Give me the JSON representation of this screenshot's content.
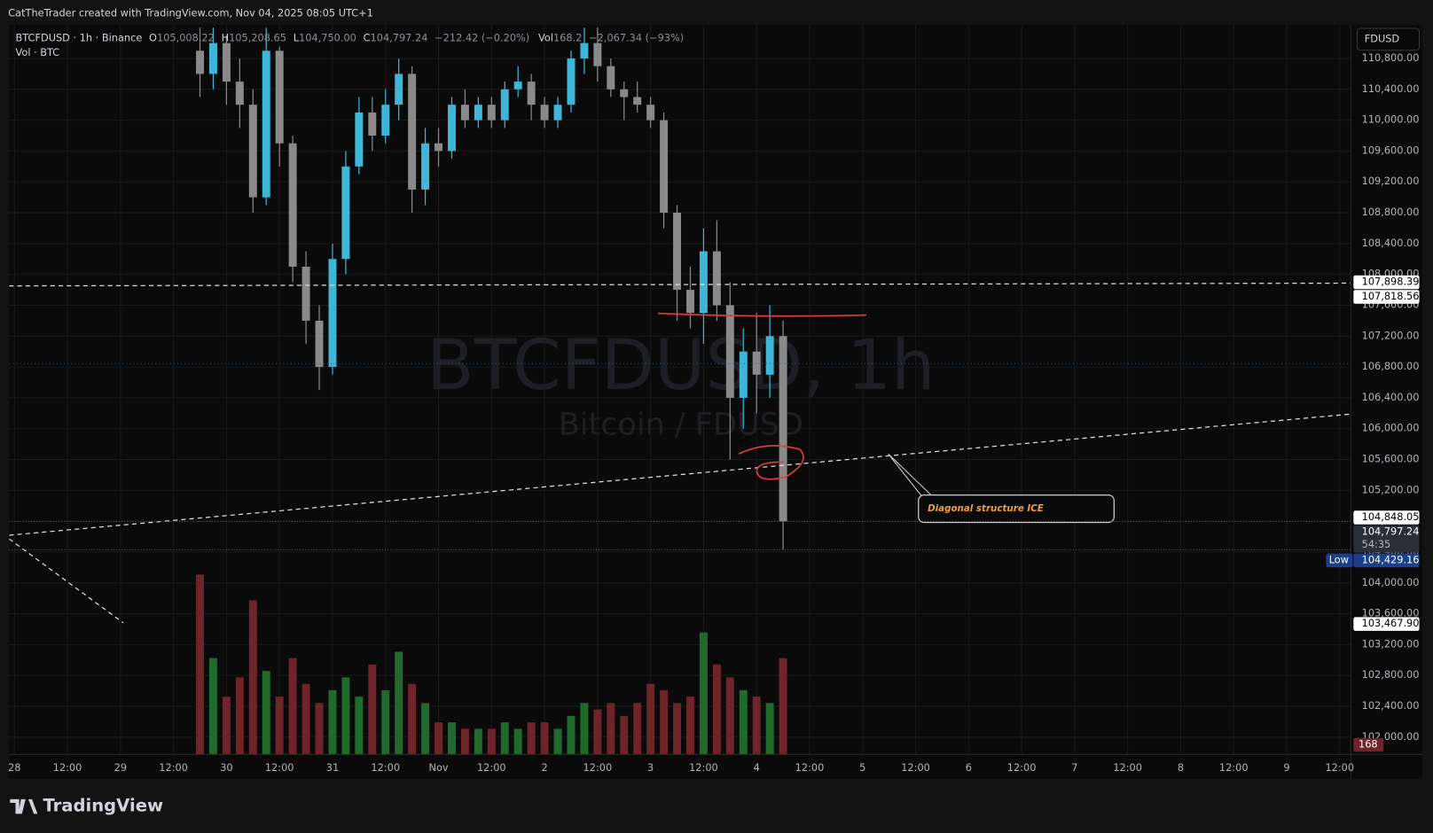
{
  "header": {
    "credit": "CatTheTrader created with TradingView.com, Nov 04, 2025 08:05 UTC+1"
  },
  "legend": {
    "symbol": "BTCFDUSD · 1h · Binance",
    "o": "O",
    "open": "105,008.22",
    "h": "H",
    "high": "105,208.65",
    "l": "L",
    "low": "104,750.00",
    "c": "C",
    "close": "104,797.24",
    "change": "−212.42 (−0.20%)",
    "vol": "Vol",
    "volume": "168.2",
    "vol_change": "−2,067.34 (−93%)",
    "vol_pane": "Vol · BTC"
  },
  "currency_button": "FDUSD",
  "footer": {
    "brand": "TradingView"
  },
  "chart_data": {
    "type": "candlestick",
    "title": "BTCFDUSD, 1h",
    "subtitle": "Bitcoin / FDUSD",
    "annotations": [
      "Diagonal structure ICE"
    ],
    "up_color": "#3fb6d8",
    "down_color": "#8a8a8a",
    "volume_up_color": "#1f6a2c",
    "volume_down_color": "#6e2428",
    "grid": true,
    "xlim": [
      -1.2,
      302.5
    ],
    "xticks": [
      {
        "value": 0,
        "label": "28"
      },
      {
        "value": 12,
        "label": "12:00"
      },
      {
        "value": 24,
        "label": "29"
      },
      {
        "value": 36,
        "label": "12:00"
      },
      {
        "value": 48,
        "label": "30"
      },
      {
        "value": 60,
        "label": "12:00"
      },
      {
        "value": 72,
        "label": "31"
      },
      {
        "value": 84,
        "label": "12:00"
      },
      {
        "value": 96,
        "label": "Nov"
      },
      {
        "value": 108,
        "label": "12:00"
      },
      {
        "value": 120,
        "label": "2"
      },
      {
        "value": 132,
        "label": "12:00"
      },
      {
        "value": 144,
        "label": "3"
      },
      {
        "value": 156,
        "label": "12:00"
      },
      {
        "value": 168,
        "label": "4"
      },
      {
        "value": 180,
        "label": "12:00"
      },
      {
        "value": 192,
        "label": "5"
      },
      {
        "value": 204,
        "label": "12:00"
      },
      {
        "value": 216,
        "label": "6"
      },
      {
        "value": 228,
        "label": "12:00"
      },
      {
        "value": 240,
        "label": "7"
      },
      {
        "value": 252,
        "label": "12:00"
      },
      {
        "value": 264,
        "label": "8"
      },
      {
        "value": 276,
        "label": "12:00"
      },
      {
        "value": 288,
        "label": "9"
      },
      {
        "value": 300,
        "label": "12:00"
      }
    ],
    "ylim": [
      101776,
      111238
    ],
    "yticks": [
      {
        "value": 102000,
        "label": "102,000.00"
      },
      {
        "value": 102400,
        "label": "102,400.00"
      },
      {
        "value": 102800,
        "label": "102,800.00"
      },
      {
        "value": 103200,
        "label": "103,200.00"
      },
      {
        "value": 103600,
        "label": "103,600.00"
      },
      {
        "value": 104000,
        "label": "104,000.00"
      },
      {
        "value": 104400,
        "label": "104,400.00"
      },
      {
        "value": 104800,
        "label": "104,800.00"
      },
      {
        "value": 105200,
        "label": "105,200.00"
      },
      {
        "value": 105600,
        "label": "105,600.00"
      },
      {
        "value": 106000,
        "label": "106,000.00"
      },
      {
        "value": 106400,
        "label": "106,400.00"
      },
      {
        "value": 106800,
        "label": "106,800.00"
      },
      {
        "value": 107200,
        "label": "107,200.00"
      },
      {
        "value": 107600,
        "label": "107,600.00"
      },
      {
        "value": 108000,
        "label": "108,000.00"
      },
      {
        "value": 108400,
        "label": "108,400.00"
      },
      {
        "value": 108800,
        "label": "108,800.00"
      },
      {
        "value": 109200,
        "label": "109,200.00"
      },
      {
        "value": 109600,
        "label": "109,600.00"
      },
      {
        "value": 110000,
        "label": "110,000.00"
      },
      {
        "value": 110400,
        "label": "110,400.00"
      },
      {
        "value": 110800,
        "label": "110,800.00"
      }
    ],
    "vlim": [
      0,
      3200
    ],
    "x": [
      42,
      45,
      48,
      51,
      54,
      57,
      60,
      63,
      66,
      69,
      72,
      75,
      78,
      81,
      84,
      87,
      90,
      93,
      96,
      99,
      102,
      105,
      108,
      111,
      114,
      117,
      120,
      123,
      126,
      129,
      132,
      135,
      138,
      141,
      144,
      147,
      150,
      153,
      156,
      159,
      162,
      165,
      168,
      171,
      174
    ],
    "open": [
      110900,
      110600,
      111000,
      110500,
      110200,
      109000,
      110900,
      109700,
      108100,
      107400,
      106800,
      108200,
      109400,
      110100,
      109800,
      110200,
      110600,
      109100,
      109700,
      109600,
      110200,
      110000,
      110200,
      110000,
      110400,
      110500,
      110200,
      110000,
      110200,
      110800,
      111000,
      110700,
      110400,
      110300,
      110200,
      110000,
      108800,
      107800,
      107500,
      108300,
      107600,
      106400,
      107000,
      106700,
      107200
    ],
    "high": [
      111200,
      111200,
      111100,
      110800,
      110400,
      111200,
      110950,
      109800,
      108300,
      107600,
      108400,
      109600,
      110300,
      110300,
      110400,
      110800,
      110700,
      109900,
      109900,
      110300,
      110400,
      110300,
      110300,
      110500,
      110700,
      110600,
      110300,
      110300,
      110900,
      111200,
      111200,
      110800,
      110500,
      110500,
      110300,
      110100,
      108900,
      108100,
      108600,
      108700,
      107900,
      107300,
      107500,
      107600,
      107400
    ],
    "low": [
      110300,
      110400,
      110200,
      109900,
      108800,
      108900,
      109400,
      107900,
      107100,
      106500,
      106700,
      108000,
      109300,
      109600,
      109700,
      110000,
      108800,
      108900,
      109400,
      109500,
      109900,
      109900,
      109900,
      109900,
      110300,
      110000,
      109900,
      109900,
      110100,
      110600,
      110500,
      110300,
      110000,
      110100,
      109900,
      108600,
      107400,
      107300,
      107100,
      107400,
      105600,
      106000,
      106200,
      106400,
      104429.16
    ],
    "close": [
      110600,
      111000,
      110500,
      110200,
      109000,
      110900,
      109700,
      108100,
      107400,
      106800,
      108200,
      109400,
      110100,
      109800,
      110200,
      110600,
      109100,
      109700,
      109600,
      110200,
      110000,
      110200,
      110000,
      110400,
      110500,
      110200,
      110000,
      110200,
      110800,
      111000,
      110700,
      110400,
      110300,
      110200,
      110000,
      108800,
      107800,
      107500,
      108300,
      107600,
      106400,
      107000,
      106700,
      107200,
      104797.24
    ],
    "volume": [
      2800,
      1500,
      900,
      1200,
      2400,
      1300,
      900,
      1500,
      1100,
      800,
      1000,
      1200,
      900,
      1400,
      1000,
      1600,
      1100,
      800,
      500,
      500,
      400,
      400,
      400,
      500,
      400,
      500,
      500,
      400,
      600,
      800,
      700,
      800,
      600,
      800,
      1100,
      1000,
      800,
      900,
      1900,
      1400,
      1200,
      1000,
      900,
      800,
      1500
    ],
    "last_volume": 168,
    "price_labels": [
      {
        "value": 107898.39,
        "label": "107,898.39",
        "color": "#ffffff"
      },
      {
        "value": 107818.56,
        "label": "107,818.56",
        "color": "#ffffff"
      },
      {
        "value": 104848.05,
        "label": "104,848.05",
        "color": "#ffffff"
      },
      {
        "value": 104797.24,
        "label": "104,797.24",
        "sub": "54:35",
        "color": "#2a2e39",
        "line": true
      },
      {
        "value": 104429.16,
        "label": "104,429.16",
        "tag": "Low",
        "color": "#1c3f8c",
        "line": true
      },
      {
        "value": 103467.9,
        "label": "103,467.90",
        "color": "#ffffff"
      }
    ]
  }
}
